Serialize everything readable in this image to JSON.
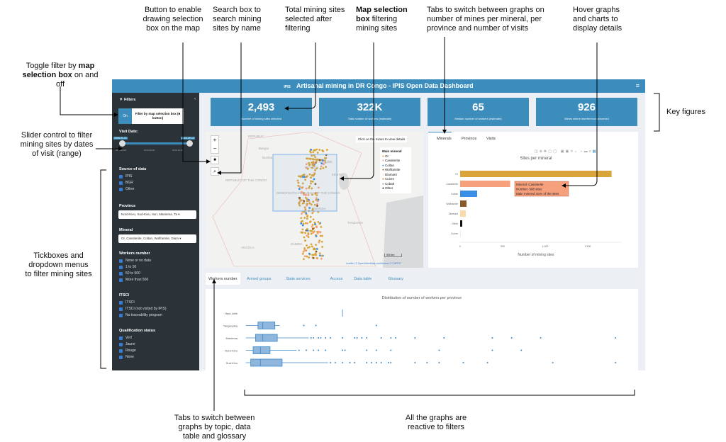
{
  "annotations": {
    "toggle_pre": "Toggle filter by ",
    "toggle_bold": "map selection box",
    "toggle_post": " on and off",
    "draw_button": "Button to enable drawing selection box on the map",
    "search": "Search box to search mining sites by name",
    "total": "Total mining sites selected after filtering",
    "mapsel_bold": "Map selection box",
    "mapsel_post": " filtering mining sites",
    "tabs_top": "Tabs to switch between graphs on number of mines per mineral, per province and number of visits",
    "hover": "Hover graphs and charts to display details",
    "key_figures": "Key figures",
    "slider": "Slider control to filter mining sites by dates of visit (range)",
    "tickboxes": "Tickboxes and dropdown menus to filter mining sites",
    "tabs_bottom": "Tabs to switch between graphs by topic, data table and glossary",
    "reactive": "All the graphs are reactive to filters"
  },
  "header": {
    "logo": "IPIS",
    "title": "Artisanal mining in DR Congo - IPIS Open Data Dashboard",
    "menu_icon": "hamburger-icon"
  },
  "sidebar": {
    "title": "Filters",
    "toggle": {
      "state": "On",
      "label": "Filter by map selection box (■ button)"
    },
    "visit_date": {
      "label": "Visit Date:",
      "from": "2009-01-01",
      "to": "2020-09-12",
      "ticks": [
        "2009-01-01",
        "2013-06-26",
        "2016-12-18"
      ]
    },
    "source": {
      "label": "Source of data",
      "items": [
        "IPIS",
        "BGR",
        "Other"
      ]
    },
    "province": {
      "label": "Province",
      "value": "Nord-Kivu, Sud-Kivu, Ituri, Maniema, Ta"
    },
    "mineral": {
      "label": "Mineral",
      "value": "Or, Cassiterite, Coltan, Wolframite, Diam"
    },
    "workers": {
      "label": "Workers number",
      "items": [
        "None or no data",
        "1 to 50",
        "50 to 500",
        "More than 500"
      ]
    },
    "itsci": {
      "label": "ITSCI",
      "items": [
        "ITSCI",
        "ITSCI (not visited by IPIS)",
        "No traceability program"
      ]
    },
    "qualification": {
      "label": "Qualification status",
      "items": [
        "Vert",
        "Jaune",
        "Rouge",
        "None"
      ]
    }
  },
  "key_figures": [
    {
      "value": "2,493",
      "label": "Number of mining sites selected"
    },
    {
      "value": "322K",
      "label": "Total number of workers (estimate)"
    },
    {
      "value": "65",
      "label": "Median number of workers (estimate)"
    },
    {
      "value": "926",
      "label": "Mines where interference observed"
    }
  ],
  "map": {
    "hint": "Click on the mines to view details",
    "legend_title": "Main mineral",
    "legend": [
      {
        "name": "Or",
        "color": "#d9a53a"
      },
      {
        "name": "Cassiterite",
        "color": "#f7a07c"
      },
      {
        "name": "Coltan",
        "color": "#3a8ee6"
      },
      {
        "name": "Wolframite",
        "color": "#8b5a2b"
      },
      {
        "name": "Diamant",
        "color": "#fcd9a8"
      },
      {
        "name": "Cuivre",
        "color": "#e07b39"
      },
      {
        "name": "Cobalt",
        "color": "#999999"
      },
      {
        "name": "Other",
        "color": "#111111"
      }
    ],
    "labels": [
      "REPUBLIC",
      "Bangui",
      "Bumba",
      "REPUBLIC OF THE CONGO",
      "DEMOCRATIC REPUBLIC OF THE CONGO",
      "UGANDA",
      "KENYA",
      "RWANDA",
      "NAIROBI",
      "TANZANIA",
      "ANGOLA",
      "ZAMBIA"
    ],
    "scale": "500 km",
    "attribution": "Leaflet | © OpenStreetMap contributors © CARTO"
  },
  "chart_tabs": [
    "Minerals",
    "Province",
    "Visits"
  ],
  "chart_data": [
    {
      "type": "bar",
      "orientation": "horizontal",
      "title": "Sites per mineral",
      "xlabel": "Number of mining sites",
      "ylabel": "",
      "categories": [
        "Or",
        "Cassiterite",
        "Coltan",
        "Wolframite",
        "Diamant",
        "Other",
        "Cuivre"
      ],
      "values": [
        1780,
        588,
        200,
        75,
        67,
        25,
        8
      ],
      "colors": [
        "#d9a53a",
        "#f7a07c",
        "#3a8ee6",
        "#8b5a2b",
        "#fcd9a8",
        "#111111",
        "#fbe3d6"
      ],
      "xticks": [
        "0",
        "500",
        "1,000",
        "1,500"
      ],
      "xlim": [
        0,
        1900
      ],
      "tooltip": {
        "l1": "Mineral: Cassiterite",
        "l2": "Number: 588 sites",
        "l3": "Main mineral: 81% of the sites"
      }
    },
    {
      "type": "box",
      "title": "Distribution of number of workers per province",
      "xlabel": "",
      "ylabel": "",
      "categories": [
        "Haut-Uele",
        "Tanganyika",
        "Maniema",
        "Nord-Kivu",
        "Sud-Kivu"
      ],
      "boxes": [
        {
          "min": 40,
          "q1": 40,
          "med": 40,
          "q3": 40,
          "max": 40,
          "outliers": []
        },
        {
          "min": 0,
          "q1": 5,
          "med": 7,
          "q3": 12,
          "max": 14,
          "outliers": [
            24,
            29,
            54
          ]
        },
        {
          "min": 0,
          "q1": 4,
          "med": 7,
          "q3": 13,
          "max": 26,
          "outliers": [
            27,
            28,
            30,
            31,
            33,
            35,
            40,
            45,
            46,
            48,
            50,
            56,
            60,
            62,
            70,
            82,
            102,
            110,
            122,
            153
          ]
        },
        {
          "min": 0,
          "q1": 3,
          "med": 6,
          "q3": 10,
          "max": 21,
          "outliers": [
            22,
            25,
            28,
            30,
            33,
            40,
            41,
            50,
            54,
            60,
            80,
            102,
            114
          ]
        },
        {
          "min": 0,
          "q1": 2,
          "med": 6,
          "q3": 15,
          "max": 34,
          "outliers": [
            35,
            37,
            40,
            43,
            45,
            50,
            52,
            54,
            56,
            59,
            60,
            70,
            75,
            80,
            90,
            100,
            127,
            153
          ]
        }
      ],
      "xlim": [
        -2,
        155
      ]
    }
  ],
  "bottom_tabs": [
    "Workers number",
    "Armed groups",
    "State services",
    "Access",
    "Data table",
    "Glossary"
  ]
}
